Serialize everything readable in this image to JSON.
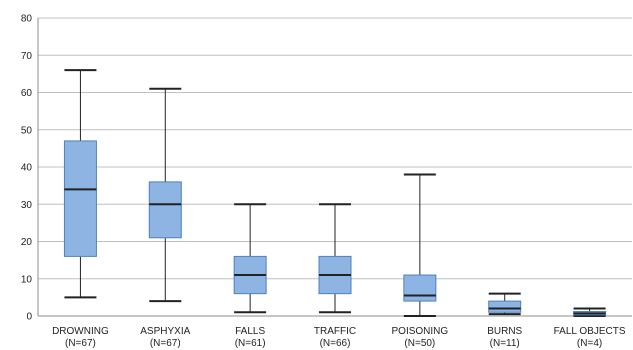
{
  "chart_data": {
    "type": "box",
    "title": "",
    "xlabel": "",
    "ylabel": "",
    "ylim": [
      0,
      80
    ],
    "yticks": [
      "0",
      "10",
      "20",
      "30",
      "40",
      "50",
      "60",
      "70",
      "80"
    ],
    "grid": true,
    "legend": "none",
    "categories": [
      {
        "name": "DROWNING",
        "n": "(N=67)",
        "min": 5,
        "q1": 16,
        "median": 34,
        "q3": 47,
        "max": 66
      },
      {
        "name": "ASPHYXIA",
        "n": "(N=67)",
        "min": 4,
        "q1": 21,
        "median": 30,
        "q3": 36,
        "max": 61
      },
      {
        "name": "FALLS",
        "n": "(N=61)",
        "min": 1,
        "q1": 6,
        "median": 11,
        "q3": 16,
        "max": 30
      },
      {
        "name": "TRAFFIC",
        "n": "(N=66)",
        "min": 1,
        "q1": 6,
        "median": 11,
        "q3": 16,
        "max": 30
      },
      {
        "name": "POISONING",
        "n": "(N=50)",
        "min": 0,
        "q1": 4,
        "median": 5.5,
        "q3": 11,
        "max": 38
      },
      {
        "name": "BURNS",
        "n": "(N=11)",
        "min": 0.5,
        "q1": 1,
        "median": 2,
        "q3": 4,
        "max": 6
      },
      {
        "name": "FALL OBJECTS",
        "n": "(N=4)",
        "min": 0,
        "q1": 0.3,
        "median": 0.7,
        "q3": 1.2,
        "max": 2
      }
    ],
    "colors": {
      "box_fill": "#8db4e2",
      "box_stroke": "#4f81bd",
      "whisker": "#222222",
      "grid": "#c0c0c0",
      "axis": "#8c8c8c"
    }
  }
}
